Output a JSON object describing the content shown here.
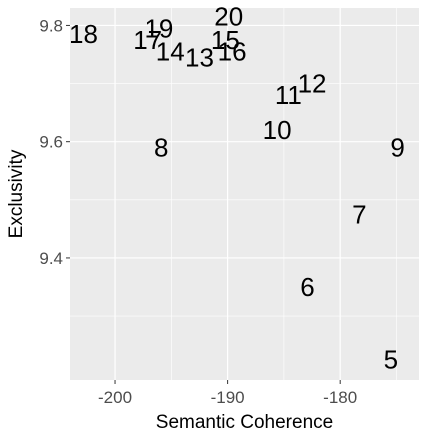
{
  "chart_data": {
    "type": "scatter",
    "title": "",
    "xlabel": "Semantic Coherence",
    "ylabel": "Exclusivity",
    "xlim": [
      -204,
      -173
    ],
    "ylim": [
      9.19,
      9.83
    ],
    "x_ticks": [
      -200,
      -190,
      -180
    ],
    "x_tick_labels": [
      "-200",
      "-190",
      "-180"
    ],
    "y_ticks": [
      9.4,
      9.6,
      9.8
    ],
    "y_tick_labels": [
      "9.4",
      "9.6",
      "9.8"
    ],
    "grid": true,
    "background": "#ebebeb",
    "grid_color": "#ffffff",
    "text_color": "#000000",
    "points": [
      {
        "label": "5",
        "x": -175.5,
        "y": 9.225
      },
      {
        "label": "6",
        "x": -182.9,
        "y": 9.35
      },
      {
        "label": "7",
        "x": -178.3,
        "y": 9.475
      },
      {
        "label": "8",
        "x": -195.9,
        "y": 9.59
      },
      {
        "label": "9",
        "x": -174.9,
        "y": 9.59
      },
      {
        "label": "10",
        "x": -185.6,
        "y": 9.62
      },
      {
        "label": "11",
        "x": -184.6,
        "y": 9.68
      },
      {
        "label": "12",
        "x": -182.5,
        "y": 9.7
      },
      {
        "label": "13",
        "x": -192.5,
        "y": 9.745
      },
      {
        "label": "14",
        "x": -195.1,
        "y": 9.755
      },
      {
        "label": "15",
        "x": -190.2,
        "y": 9.775
      },
      {
        "label": "16",
        "x": -189.6,
        "y": 9.755
      },
      {
        "label": "17",
        "x": -197.1,
        "y": 9.775
      },
      {
        "label": "18",
        "x": -202.8,
        "y": 9.785
      },
      {
        "label": "19",
        "x": -196.1,
        "y": 9.795
      },
      {
        "label": "20",
        "x": -189.9,
        "y": 9.815
      }
    ]
  }
}
